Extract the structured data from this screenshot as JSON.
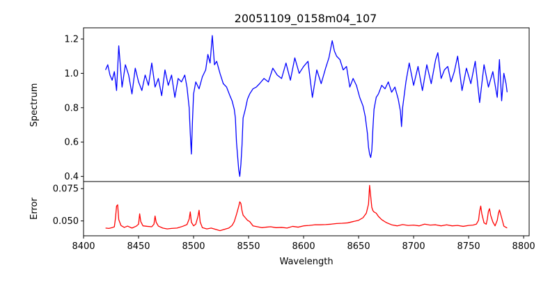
{
  "chart_data": [
    {
      "type": "line",
      "panel": "spectrum",
      "title": "20051109_0158m04_107",
      "xlabel": "",
      "ylabel": "Spectrum",
      "xlim": [
        8400,
        8805
      ],
      "ylim": [
        0.37,
        1.265
      ],
      "yticks": [
        0.4,
        0.6,
        0.8,
        1.0,
        1.2
      ],
      "ytick_labels": [
        "0.4",
        "0.6",
        "0.8",
        "1.0",
        "1.2"
      ],
      "grid": false,
      "color": "#0000ff",
      "x": [
        8420,
        8422,
        8424,
        8426,
        8428,
        8430,
        8432,
        8435,
        8438,
        8441,
        8444,
        8447,
        8450,
        8453,
        8456,
        8459,
        8462,
        8465,
        8468,
        8471,
        8474,
        8477,
        8480,
        8483,
        8486,
        8489,
        8492,
        8494,
        8496,
        8497,
        8498,
        8499,
        8500,
        8502,
        8505,
        8508,
        8511,
        8513,
        8515,
        8517,
        8519,
        8521,
        8524,
        8527,
        8530,
        8533,
        8535,
        8537,
        8538,
        8539,
        8540,
        8541,
        8542,
        8543,
        8544,
        8545,
        8547,
        8549,
        8551,
        8554,
        8557,
        8560,
        8564,
        8568,
        8572,
        8576,
        8580,
        8584,
        8588,
        8592,
        8596,
        8600,
        8604,
        8608,
        8612,
        8616,
        8620,
        8623,
        8626,
        8628,
        8630,
        8633,
        8636,
        8639,
        8642,
        8645,
        8648,
        8651,
        8654,
        8656,
        8658,
        8659,
        8660,
        8661,
        8662,
        8663,
        8664,
        8666,
        8668,
        8671,
        8674,
        8677,
        8680,
        8683,
        8686,
        8688,
        8689,
        8690,
        8693,
        8696,
        8700,
        8704,
        8708,
        8712,
        8716,
        8720,
        8722,
        8725,
        8728,
        8731,
        8734,
        8737,
        8740,
        8744,
        8748,
        8752,
        8756,
        8760,
        8764,
        8768,
        8772,
        8776,
        8778,
        8780,
        8782,
        8784,
        8785
      ],
      "y": [
        1.02,
        1.05,
        0.99,
        0.96,
        1.01,
        0.9,
        1.16,
        0.92,
        1.05,
        0.99,
        0.88,
        1.03,
        0.95,
        0.9,
        0.99,
        0.93,
        1.06,
        0.92,
        0.97,
        0.87,
        1.02,
        0.93,
        0.99,
        0.86,
        0.97,
        0.95,
        0.99,
        0.92,
        0.8,
        0.65,
        0.53,
        0.72,
        0.88,
        0.95,
        0.91,
        0.98,
        1.02,
        1.11,
        1.06,
        1.22,
        1.05,
        1.07,
        1.0,
        0.94,
        0.92,
        0.87,
        0.84,
        0.79,
        0.74,
        0.6,
        0.52,
        0.44,
        0.4,
        0.47,
        0.58,
        0.74,
        0.79,
        0.85,
        0.88,
        0.91,
        0.92,
        0.94,
        0.97,
        0.95,
        1.03,
        0.99,
        0.97,
        1.06,
        0.96,
        1.09,
        1.0,
        1.04,
        1.07,
        0.86,
        1.02,
        0.94,
        1.03,
        1.09,
        1.19,
        1.13,
        1.1,
        1.08,
        1.02,
        1.04,
        0.92,
        0.97,
        0.93,
        0.86,
        0.81,
        0.75,
        0.65,
        0.57,
        0.53,
        0.51,
        0.55,
        0.68,
        0.79,
        0.86,
        0.88,
        0.93,
        0.91,
        0.95,
        0.89,
        0.92,
        0.85,
        0.78,
        0.69,
        0.8,
        0.95,
        1.06,
        0.93,
        1.04,
        0.9,
        1.05,
        0.94,
        1.08,
        1.12,
        0.97,
        1.02,
        1.04,
        0.95,
        1.01,
        1.1,
        0.9,
        1.03,
        0.94,
        1.07,
        0.83,
        1.05,
        0.92,
        1.01,
        0.86,
        1.08,
        0.84,
        1.0,
        0.94,
        0.89
      ]
    },
    {
      "type": "line",
      "panel": "error",
      "title": "",
      "xlabel": "Wavelength",
      "ylabel": "Error",
      "xlim": [
        8400,
        8805
      ],
      "ylim": [
        0.0385,
        0.0805
      ],
      "yticks": [
        0.05,
        0.075
      ],
      "ytick_labels": [
        "0.050",
        "0.075"
      ],
      "xticks": [
        8400,
        8450,
        8500,
        8550,
        8600,
        8650,
        8700,
        8750,
        8800
      ],
      "xtick_labels": [
        "8400",
        "8450",
        "8500",
        "8550",
        "8600",
        "8650",
        "8700",
        "8750",
        "8800"
      ],
      "grid": false,
      "color": "#ff0000",
      "x": [
        8420,
        8423,
        8426,
        8428,
        8429,
        8430,
        8431,
        8432,
        8434,
        8437,
        8440,
        8444,
        8448,
        8450,
        8451,
        8452,
        8454,
        8458,
        8462,
        8464,
        8465,
        8466,
        8468,
        8472,
        8476,
        8480,
        8485,
        8490,
        8494,
        8496,
        8497,
        8498,
        8500,
        8502,
        8504,
        8505,
        8506,
        8508,
        8512,
        8516,
        8520,
        8524,
        8528,
        8532,
        8535,
        8537,
        8539,
        8541,
        8542,
        8543,
        8544,
        8545,
        8547,
        8549,
        8551,
        8554,
        8558,
        8562,
        8566,
        8570,
        8575,
        8580,
        8585,
        8590,
        8595,
        8600,
        8605,
        8610,
        8615,
        8620,
        8625,
        8630,
        8635,
        8640,
        8645,
        8650,
        8654,
        8657,
        8659,
        8660,
        8661,
        8662,
        8663,
        8664,
        8666,
        8668,
        8671,
        8675,
        8680,
        8685,
        8690,
        8695,
        8700,
        8705,
        8710,
        8715,
        8720,
        8725,
        8730,
        8735,
        8740,
        8745,
        8750,
        8754,
        8757,
        8759,
        8760,
        8761,
        8762,
        8764,
        8766,
        8767,
        8768,
        8769,
        8770,
        8772,
        8774,
        8776,
        8777,
        8778,
        8780,
        8782,
        8784,
        8785
      ],
      "y": [
        0.0445,
        0.0442,
        0.0448,
        0.0455,
        0.052,
        0.0615,
        0.0625,
        0.051,
        0.0465,
        0.045,
        0.046,
        0.0445,
        0.046,
        0.0475,
        0.0555,
        0.0495,
        0.0462,
        0.0458,
        0.0455,
        0.0475,
        0.0538,
        0.049,
        0.046,
        0.0445,
        0.0438,
        0.0442,
        0.0445,
        0.0458,
        0.0472,
        0.0515,
        0.057,
        0.049,
        0.0462,
        0.0475,
        0.0535,
        0.0583,
        0.0492,
        0.0448,
        0.0438,
        0.0445,
        0.0435,
        0.0425,
        0.0435,
        0.0445,
        0.0465,
        0.0495,
        0.055,
        0.0612,
        0.0648,
        0.0635,
        0.058,
        0.0545,
        0.0525,
        0.0505,
        0.0495,
        0.0462,
        0.0455,
        0.0448,
        0.0452,
        0.0455,
        0.0448,
        0.045,
        0.0445,
        0.0458,
        0.0452,
        0.0462,
        0.0465,
        0.047,
        0.047,
        0.0472,
        0.0475,
        0.048,
        0.0482,
        0.0485,
        0.0495,
        0.0505,
        0.0525,
        0.056,
        0.063,
        0.0775,
        0.069,
        0.0605,
        0.058,
        0.057,
        0.056,
        0.0535,
        0.051,
        0.0488,
        0.047,
        0.0462,
        0.0472,
        0.0465,
        0.0468,
        0.0462,
        0.0475,
        0.0468,
        0.047,
        0.0462,
        0.047,
        0.0462,
        0.0465,
        0.0458,
        0.0465,
        0.0468,
        0.0475,
        0.0505,
        0.0575,
        0.0615,
        0.0555,
        0.0485,
        0.0475,
        0.0515,
        0.0575,
        0.0595,
        0.0545,
        0.0492,
        0.0462,
        0.0505,
        0.0555,
        0.0585,
        0.0525,
        0.046,
        0.045,
        0.0445
      ]
    }
  ]
}
